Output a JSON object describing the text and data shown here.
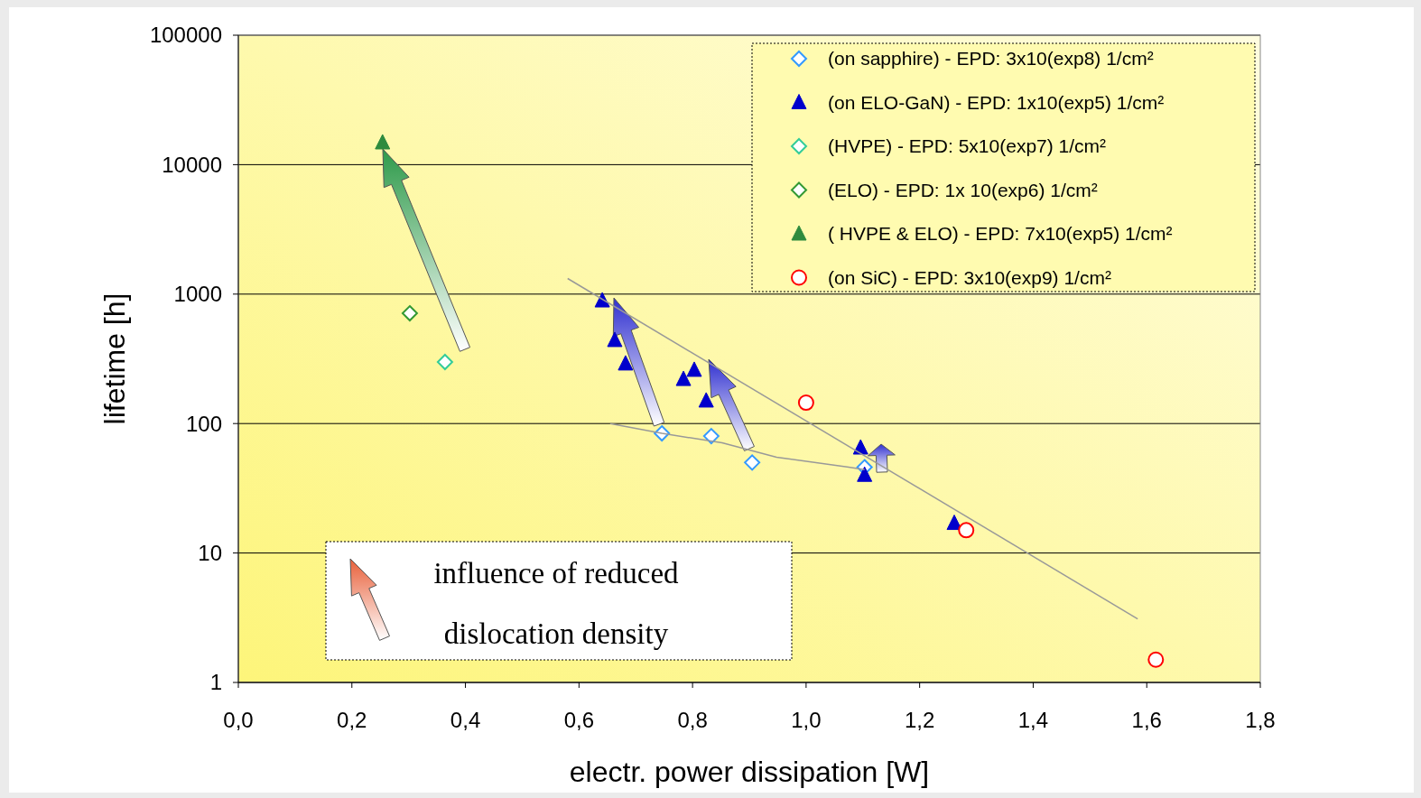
{
  "chart_data": {
    "type": "scatter",
    "xlabel": "electr. power dissipation [W]",
    "ylabel": "lifetime [h]",
    "log": "y",
    "grid": "y",
    "legend": "top right",
    "xlim": [
      0,
      1.8
    ],
    "xticks": [
      {
        "value": 0,
        "label": "0,0"
      },
      {
        "value": 0.2,
        "label": "0,2"
      },
      {
        "value": 0.4,
        "label": "0,4"
      },
      {
        "value": 0.6,
        "label": "0,6"
      },
      {
        "value": 0.8,
        "label": "0,8"
      },
      {
        "value": 1,
        "label": "1,0"
      },
      {
        "value": 1.2,
        "label": "1,2"
      },
      {
        "value": 1.4,
        "label": "1,4"
      },
      {
        "value": 1.6,
        "label": "1,6"
      },
      {
        "value": 1.8,
        "label": "1,8"
      }
    ],
    "ylim": [
      1,
      100000
    ],
    "yticks": [
      1,
      10,
      100,
      1000,
      10000,
      100000
    ],
    "series": [
      {
        "name": "(on sapphire)  - EPD: 3x10(exp8) 1/cm²",
        "color": "#3399ff",
        "marker": "diamond",
        "x": [
          0.746,
          0.833,
          0.905,
          1.103
        ],
        "values": [
          84,
          80,
          50,
          46
        ]
      },
      {
        "name": "(on ELO-GaN)  - EPD: 1x10(exp5) 1/cm²",
        "color": "#0000cc",
        "marker": "triangle",
        "x": [
          0.641,
          0.663,
          0.682,
          0.784,
          0.803,
          0.824,
          1.096,
          1.103,
          1.261
        ],
        "values": [
          890,
          440,
          290,
          220,
          259,
          150,
          65,
          40,
          17
        ]
      },
      {
        "name": "(HVPE)  - EPD: 5x10(exp7) 1/cm²",
        "color": "#33cc99",
        "marker": "diamond",
        "x": [
          0.364
        ],
        "values": [
          299
        ]
      },
      {
        "name": "(ELO)  - EPD: 1x 10(exp6) 1/cm²",
        "color": "#339933",
        "marker": "diamond",
        "x": [
          0.302
        ],
        "values": [
          711
        ]
      },
      {
        "name": "( HVPE & ELO)  - EPD: 7x10(exp5) 1/cm²",
        "color": "#2e8b3e",
        "marker": "triangle",
        "x": [
          0.254
        ],
        "values": [
          14800
        ]
      },
      {
        "name": "(on SiC)  - EPD: 3x10(exp9) 1/cm²",
        "color": "#ff0000",
        "marker": "circle",
        "x": [
          1.0,
          1.282,
          1.616
        ],
        "values": [
          145,
          15,
          1.5
        ]
      },
      {
        "type": "line",
        "color": "#999999",
        "marker": "none",
        "x": [
          0.58,
          1.584
        ],
        "values": [
          1320,
          3.1
        ]
      },
      {
        "type": "line",
        "color": "#999999",
        "marker": "none",
        "x": [
          0.655,
          0.746,
          0.852,
          0.948,
          1.075,
          1.103
        ],
        "values": [
          100,
          84,
          71,
          55,
          46,
          44
        ]
      }
    ],
    "annotations": [
      "influence of reduced",
      "dislocation density"
    ]
  }
}
